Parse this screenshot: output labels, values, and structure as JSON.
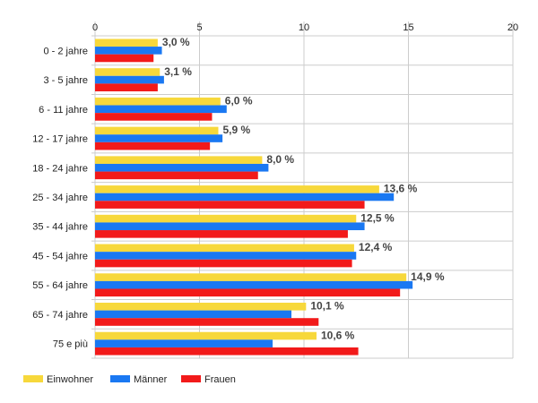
{
  "chart_data": {
    "type": "bar",
    "orientation": "horizontal",
    "categories": [
      "0 - 2 jahre",
      "3 - 5 jahre",
      "6 - 11 jahre",
      "12 - 17 jahre",
      "18 - 24 jahre",
      "25 - 34 jahre",
      "35 - 44 jahre",
      "45 - 54 jahre",
      "55 - 64 jahre",
      "65 - 74 jahre",
      "75 e più"
    ],
    "series": [
      {
        "name": "Einwohner",
        "color": "#f7d83b",
        "values": [
          3.0,
          3.1,
          6.0,
          5.9,
          8.0,
          13.6,
          12.5,
          12.4,
          14.9,
          10.1,
          10.6
        ]
      },
      {
        "name": "Männer",
        "color": "#1a78f2",
        "values": [
          3.2,
          3.3,
          6.3,
          6.1,
          8.3,
          14.3,
          12.9,
          12.5,
          15.2,
          9.4,
          8.5
        ]
      },
      {
        "name": "Frauen",
        "color": "#f21a1a",
        "values": [
          2.8,
          3.0,
          5.6,
          5.5,
          7.8,
          12.9,
          12.1,
          12.3,
          14.6,
          10.7,
          12.6
        ]
      }
    ],
    "data_labels": [
      "3,0 %",
      "3,1 %",
      "6,0 %",
      "5,9 %",
      "8,0 %",
      "13,6 %",
      "12,5 %",
      "12,4 %",
      "14,9 %",
      "10,1 %",
      "10,6 %"
    ],
    "xlim": [
      0,
      20
    ],
    "xticks": [
      "0",
      "5",
      "10",
      "15",
      "20"
    ],
    "grid": true,
    "legend_position": "bottom-left"
  }
}
